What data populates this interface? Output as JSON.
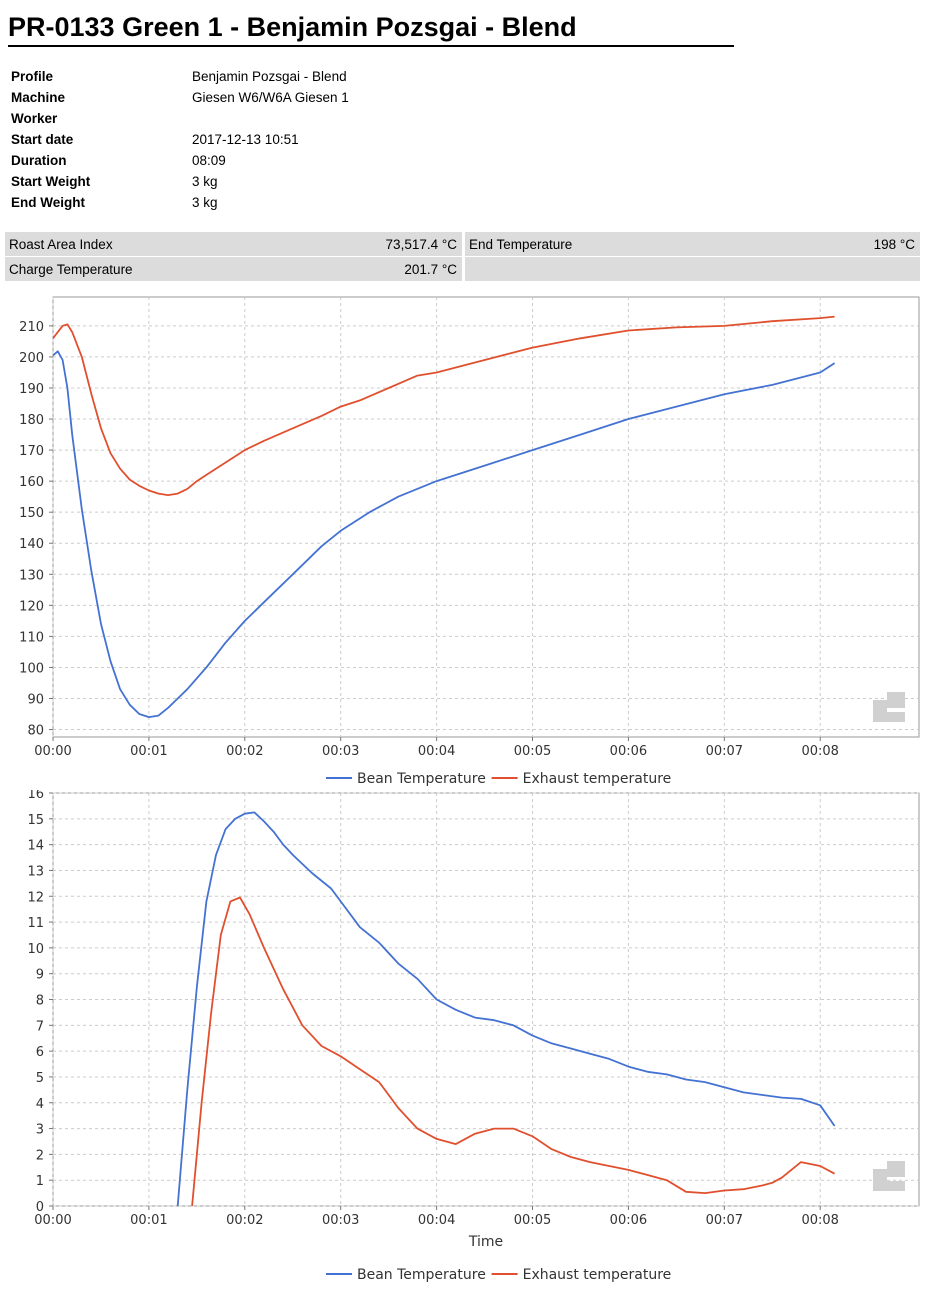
{
  "header": {
    "title": "PR-0133 Green 1 - Benjamin Pozsgai - Blend"
  },
  "info": [
    {
      "key": "Profile",
      "value": "Benjamin Pozsgai - Blend"
    },
    {
      "key": "Machine",
      "value": "Giesen W6/W6A Giesen 1"
    },
    {
      "key": "Worker",
      "value": ""
    },
    {
      "key": "Start date",
      "value": "2017-12-13 10:51"
    },
    {
      "key": "Duration",
      "value": "08:09"
    },
    {
      "key": "Start Weight",
      "value": "3 kg"
    },
    {
      "key": "End Weight",
      "value": "3 kg"
    }
  ],
  "summary": {
    "roast_area_label": "Roast Area Index",
    "roast_area_value": "73,517.4 °C",
    "end_temp_label": "End Temperature",
    "end_temp_value": "198 °C",
    "charge_temp_label": "Charge Temperature",
    "charge_temp_value": "201.7 °C"
  },
  "colors": {
    "bean": "#4472d2",
    "exhaust": "#e0502e",
    "grid": "#cccccc",
    "panel_bg": "#dcdcdc"
  },
  "chart_data": [
    {
      "type": "line",
      "title": "",
      "xlabel": "",
      "ylabel": "",
      "x_ticks": [
        "00:00",
        "00:01",
        "00:02",
        "00:03",
        "00:04",
        "00:05",
        "00:06",
        "00:07",
        "00:08"
      ],
      "y_ticks": [
        80,
        90,
        100,
        110,
        120,
        130,
        140,
        150,
        160,
        170,
        180,
        190,
        200,
        210
      ],
      "xlim": [
        0,
        9.03
      ],
      "ylim": [
        77.6,
        219.3
      ],
      "grid": true,
      "legend_position": "bottom",
      "series": [
        {
          "name": "Bean Temperature",
          "x": [
            0,
            0.05,
            0.1,
            0.15,
            0.2,
            0.3,
            0.4,
            0.5,
            0.6,
            0.7,
            0.8,
            0.9,
            1.0,
            1.1,
            1.2,
            1.3,
            1.4,
            1.6,
            1.8,
            2.0,
            2.2,
            2.5,
            2.8,
            3.0,
            3.3,
            3.6,
            4.0,
            4.5,
            5.0,
            5.5,
            6.0,
            6.5,
            7.0,
            7.5,
            8.0,
            8.15
          ],
          "y": [
            200.5,
            201.8,
            199,
            190,
            175,
            151,
            131,
            114,
            102,
            93,
            88,
            85,
            84,
            84.5,
            87,
            90,
            93,
            100,
            108,
            115,
            121,
            130,
            139,
            144,
            150,
            155,
            160,
            165,
            170,
            175,
            180,
            184,
            188,
            191,
            195,
            198
          ]
        },
        {
          "name": "Exhaust temperature",
          "x": [
            0,
            0.05,
            0.1,
            0.15,
            0.2,
            0.3,
            0.4,
            0.5,
            0.6,
            0.7,
            0.8,
            0.9,
            1.0,
            1.1,
            1.2,
            1.3,
            1.4,
            1.5,
            1.6,
            1.8,
            2.0,
            2.2,
            2.5,
            2.8,
            3.0,
            3.2,
            3.5,
            3.8,
            4.0,
            4.5,
            5.0,
            5.5,
            6.0,
            6.5,
            7.0,
            7.5,
            8.0,
            8.15
          ],
          "y": [
            206,
            208,
            210,
            210.5,
            208,
            200,
            188,
            177,
            169,
            164,
            160.5,
            158.5,
            157,
            156,
            155.5,
            156,
            157.5,
            160,
            162,
            166,
            170,
            173,
            177,
            181,
            184,
            186,
            190,
            194,
            195,
            199,
            203,
            206,
            208.5,
            209.5,
            210,
            211.5,
            212.5,
            213
          ]
        }
      ]
    },
    {
      "type": "line",
      "title": "",
      "xlabel": "Time",
      "ylabel": "",
      "x_ticks": [
        "00:00",
        "00:01",
        "00:02",
        "00:03",
        "00:04",
        "00:05",
        "00:06",
        "00:07",
        "00:08"
      ],
      "y_ticks": [
        0,
        1,
        2,
        3,
        4,
        5,
        6,
        7,
        8,
        9,
        10,
        11,
        12,
        13,
        14,
        15,
        16
      ],
      "xlim": [
        0,
        9.03
      ],
      "ylim": [
        0,
        16
      ],
      "grid": true,
      "legend_position": "bottom",
      "series": [
        {
          "name": "Bean Temperature",
          "x": [
            1.3,
            1.4,
            1.5,
            1.6,
            1.7,
            1.8,
            1.9,
            2.0,
            2.1,
            2.2,
            2.3,
            2.4,
            2.5,
            2.7,
            2.9,
            3.0,
            3.2,
            3.4,
            3.6,
            3.8,
            4.0,
            4.2,
            4.4,
            4.6,
            4.8,
            5.0,
            5.2,
            5.4,
            5.6,
            5.8,
            6.0,
            6.2,
            6.4,
            6.6,
            6.8,
            7.0,
            7.2,
            7.4,
            7.6,
            7.8,
            8.0,
            8.15
          ],
          "y": [
            0,
            4.5,
            8.5,
            11.8,
            13.6,
            14.6,
            15.0,
            15.2,
            15.25,
            14.9,
            14.5,
            14.0,
            13.6,
            12.9,
            12.3,
            11.8,
            10.8,
            10.2,
            9.4,
            8.8,
            8.0,
            7.6,
            7.3,
            7.2,
            7.0,
            6.6,
            6.3,
            6.1,
            5.9,
            5.7,
            5.4,
            5.2,
            5.1,
            4.9,
            4.8,
            4.6,
            4.4,
            4.3,
            4.2,
            4.15,
            3.9,
            3.1
          ]
        },
        {
          "name": "Exhaust temperature",
          "x": [
            1.45,
            1.55,
            1.65,
            1.75,
            1.85,
            1.95,
            2.05,
            2.2,
            2.4,
            2.6,
            2.8,
            3.0,
            3.2,
            3.4,
            3.5,
            3.6,
            3.8,
            4.0,
            4.2,
            4.4,
            4.6,
            4.7,
            4.8,
            5.0,
            5.2,
            5.4,
            5.6,
            5.8,
            6.0,
            6.2,
            6.4,
            6.6,
            6.8,
            7.0,
            7.2,
            7.4,
            7.5,
            7.6,
            7.8,
            8.0,
            8.15
          ],
          "y": [
            0,
            4.0,
            7.5,
            10.5,
            11.8,
            11.95,
            11.3,
            10.0,
            8.4,
            7.0,
            6.2,
            5.8,
            5.3,
            4.8,
            4.3,
            3.8,
            3.0,
            2.6,
            2.4,
            2.8,
            3.0,
            3.0,
            3.0,
            2.7,
            2.2,
            1.9,
            1.7,
            1.55,
            1.4,
            1.2,
            1.0,
            0.55,
            0.5,
            0.6,
            0.65,
            0.8,
            0.9,
            1.1,
            1.7,
            1.55,
            1.25
          ]
        }
      ]
    }
  ]
}
